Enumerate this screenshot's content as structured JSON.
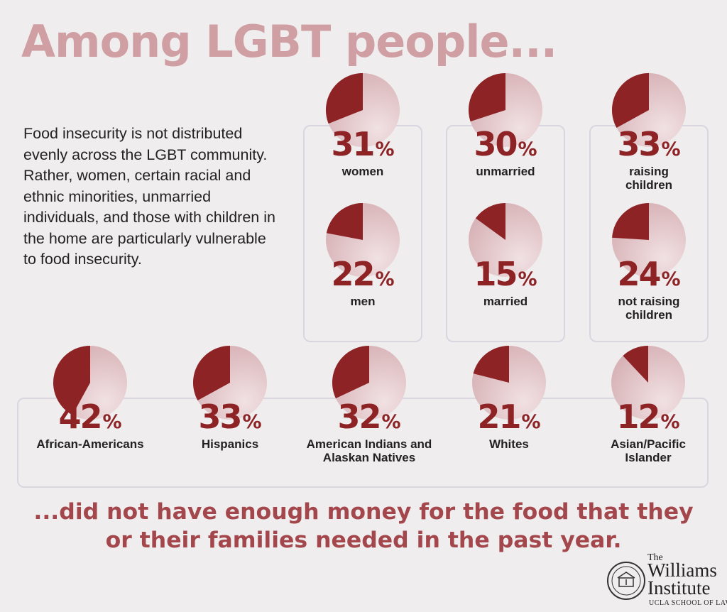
{
  "title": "Among LGBT people...",
  "intro": "Food insecurity is not distributed evenly across the LGBT community. Rather, women, certain racial and ethnic minorities, unmarried individuals, and those with children in the home are particularly vulnerable to food insecurity.",
  "chart_data": {
    "type": "pie",
    "title": "Among LGBT people...",
    "note": "...did not have enough money for the food that they or their families needed in the past year.",
    "unit": "%",
    "colors": {
      "slice": "#8e2326",
      "rest": "#d7b2b6",
      "rest_light": "#f1e1e3"
    },
    "groups": [
      {
        "id": "gender",
        "items": [
          {
            "label": [
              "women"
            ],
            "value": 31
          },
          {
            "label": [
              "men"
            ],
            "value": 22
          }
        ]
      },
      {
        "id": "marital",
        "items": [
          {
            "label": [
              "unmarried"
            ],
            "value": 30
          },
          {
            "label": [
              "married"
            ],
            "value": 15
          }
        ]
      },
      {
        "id": "children",
        "items": [
          {
            "label": [
              "raising",
              "children"
            ],
            "value": 33
          },
          {
            "label": [
              "not raising",
              "children"
            ],
            "value": 24
          }
        ]
      },
      {
        "id": "race",
        "items": [
          {
            "label": [
              "African-Americans"
            ],
            "value": 42
          },
          {
            "label": [
              "Hispanics"
            ],
            "value": 33
          },
          {
            "label": [
              "American Indians and",
              "Alaskan Natives"
            ],
            "value": 32
          },
          {
            "label": [
              "Whites"
            ],
            "value": 21
          },
          {
            "label": [
              "Asian/Pacific",
              "Islander"
            ],
            "value": 12
          }
        ]
      }
    ]
  },
  "footer": {
    "line1": "...did not have enough money for the food that they",
    "line2": "or their families needed in the past year."
  },
  "logo": {
    "the": "The",
    "name1": "Williams",
    "name2": "Institute",
    "school": "UCLA SCHOOL OF LAW"
  }
}
